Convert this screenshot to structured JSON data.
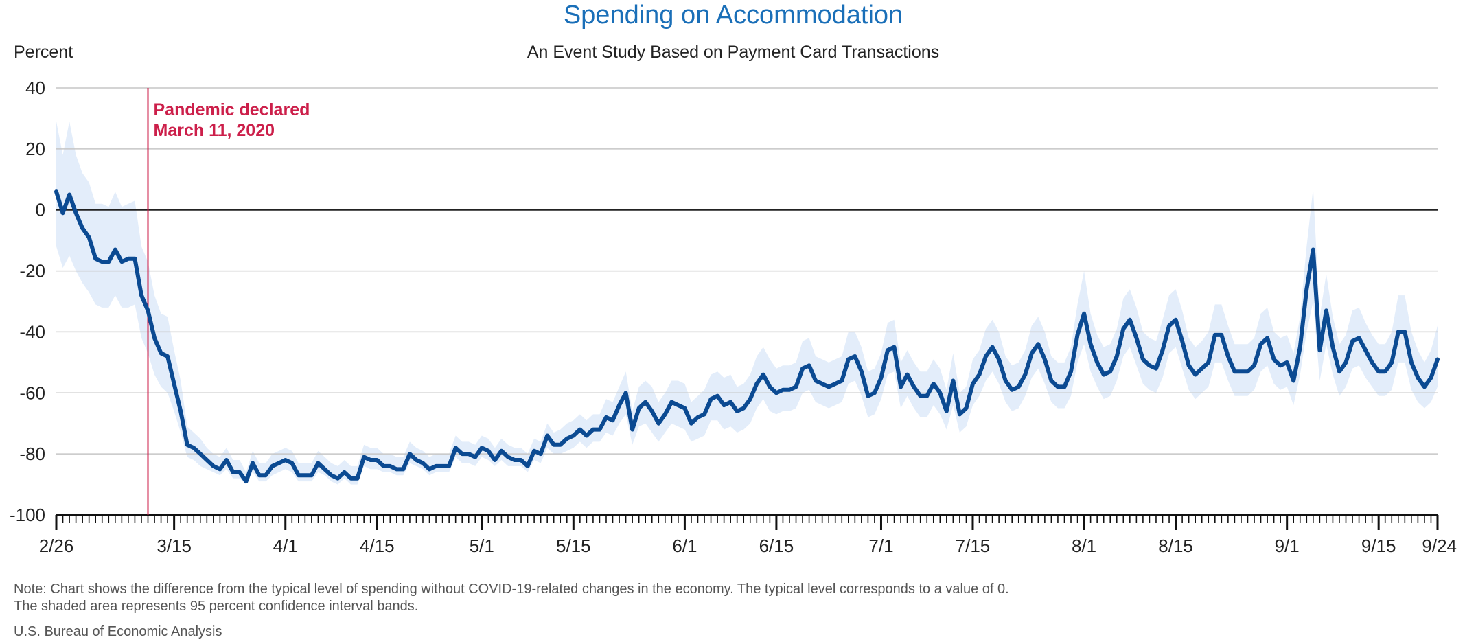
{
  "chart_data": {
    "type": "line",
    "title": "Spending on Accommodation",
    "subtitle": "An Event Study Based on Payment Card Transactions",
    "ylabel": "Percent",
    "xlabel": "",
    "ylim": [
      -100,
      40
    ],
    "yticks": [
      40,
      20,
      0,
      -20,
      -40,
      -60,
      -80,
      -100
    ],
    "x_start": "2/26",
    "x_end": "9/24",
    "xticks": [
      {
        "label": "2/26",
        "day": 0
      },
      {
        "label": "3/15",
        "day": 18
      },
      {
        "label": "4/1",
        "day": 35
      },
      {
        "label": "4/15",
        "day": 49
      },
      {
        "label": "5/1",
        "day": 65
      },
      {
        "label": "5/15",
        "day": 79
      },
      {
        "label": "6/1",
        "day": 96
      },
      {
        "label": "6/15",
        "day": 110
      },
      {
        "label": "7/1",
        "day": 126
      },
      {
        "label": "7/15",
        "day": 140
      },
      {
        "label": "8/1",
        "day": 157
      },
      {
        "label": "8/15",
        "day": 171
      },
      {
        "label": "9/1",
        "day": 188
      },
      {
        "label": "9/15",
        "day": 202
      },
      {
        "label": "9/24",
        "day": 211
      }
    ],
    "grid": true,
    "event": {
      "label_line1": "Pandemic declared",
      "label_line2": "March 11, 2020",
      "day": 14
    },
    "series": [
      {
        "values": [
          6,
          -1,
          5,
          -1,
          -6,
          -9,
          -16,
          -17,
          -17,
          -13,
          -17,
          -16,
          -16,
          -28,
          -33,
          -42,
          -47,
          -48,
          -57,
          -66,
          -77,
          -78,
          -80,
          -82,
          -84,
          -85,
          -82,
          -86,
          -86,
          -89,
          -83,
          -87,
          -87,
          -84,
          -83,
          -82,
          -83,
          -87,
          -87,
          -87,
          -83,
          -85,
          -87,
          -88,
          -86,
          -88,
          -88,
          -81,
          -82,
          -82,
          -84,
          -84,
          -85,
          -85,
          -80,
          -82,
          -83,
          -85,
          -84,
          -84,
          -84,
          -78,
          -80,
          -80,
          -81,
          -78,
          -79,
          -82,
          -79,
          -81,
          -82,
          -82,
          -84,
          -79,
          -80,
          -74,
          -77,
          -77,
          -75,
          -74,
          -72,
          -74,
          -72,
          -72,
          -68,
          -69,
          -64,
          -60,
          -72,
          -65,
          -63,
          -66,
          -70,
          -67,
          -63,
          -64,
          -65,
          -70,
          -68,
          -67,
          -62,
          -61,
          -64,
          -63,
          -66,
          -65,
          -62,
          -57,
          -54,
          -58,
          -60,
          -59,
          -59,
          -58,
          -52,
          -51,
          -56,
          -57,
          -58,
          -57,
          -56,
          -49,
          -48,
          -53,
          -61,
          -60,
          -55,
          -46,
          -45,
          -58,
          -54,
          -58,
          -61,
          -61,
          -57,
          -60,
          -66,
          -56,
          -67,
          -65,
          -57,
          -54,
          -48,
          -45,
          -49,
          -56,
          -59,
          -58,
          -54,
          -47,
          -44,
          -49,
          -56,
          -58,
          -58,
          -53,
          -41,
          -34,
          -44,
          -50,
          -54,
          -53,
          -48,
          -39,
          -36,
          -42,
          -49,
          -51,
          -52,
          -46,
          -38,
          -36,
          -43,
          -51,
          -54,
          -52,
          -50,
          -41,
          -41,
          -48,
          -53,
          -53,
          -53,
          -51,
          -44,
          -42,
          -49,
          -51,
          -50,
          -56,
          -45,
          -26,
          -13,
          -46,
          -33,
          -45,
          -53,
          -50,
          -43,
          -42,
          -46,
          -50,
          -53,
          -53,
          -50,
          -40,
          -40,
          -50,
          -55,
          -58,
          -55,
          -49
        ],
        "lower": [
          -12,
          -19,
          -15,
          -20,
          -24,
          -27,
          -31,
          -32,
          -32,
          -28,
          -32,
          -32,
          -31,
          -42,
          -47,
          -54,
          -58,
          -60,
          -66,
          -73,
          -81,
          -82,
          -84,
          -85,
          -86,
          -87,
          -85,
          -88,
          -88,
          -90,
          -86,
          -89,
          -89,
          -87,
          -86,
          -85,
          -86,
          -89,
          -89,
          -89,
          -86,
          -87,
          -89,
          -90,
          -88,
          -90,
          -90,
          -84,
          -85,
          -85,
          -86,
          -86,
          -87,
          -87,
          -83,
          -84,
          -85,
          -87,
          -86,
          -86,
          -86,
          -81,
          -83,
          -83,
          -84,
          -81,
          -82,
          -84,
          -82,
          -84,
          -84,
          -84,
          -86,
          -82,
          -83,
          -78,
          -80,
          -80,
          -79,
          -78,
          -76,
          -78,
          -76,
          -76,
          -73,
          -74,
          -70,
          -67,
          -77,
          -71,
          -70,
          -73,
          -76,
          -73,
          -70,
          -71,
          -72,
          -76,
          -75,
          -74,
          -69,
          -69,
          -72,
          -71,
          -73,
          -72,
          -70,
          -65,
          -62,
          -66,
          -67,
          -66,
          -66,
          -65,
          -60,
          -59,
          -63,
          -64,
          -65,
          -64,
          -63,
          -57,
          -56,
          -61,
          -68,
          -67,
          -62,
          -54,
          -53,
          -65,
          -61,
          -65,
          -68,
          -68,
          -64,
          -67,
          -72,
          -64,
          -73,
          -71,
          -64,
          -61,
          -56,
          -53,
          -57,
          -63,
          -66,
          -65,
          -61,
          -55,
          -52,
          -57,
          -63,
          -65,
          -65,
          -61,
          -50,
          -44,
          -53,
          -58,
          -62,
          -61,
          -56,
          -48,
          -45,
          -51,
          -57,
          -59,
          -60,
          -55,
          -47,
          -45,
          -52,
          -59,
          -62,
          -60,
          -58,
          -50,
          -50,
          -56,
          -61,
          -61,
          -61,
          -59,
          -53,
          -51,
          -57,
          -59,
          -58,
          -64,
          -54,
          -40,
          -30,
          -56,
          -44,
          -54,
          -61,
          -58,
          -52,
          -51,
          -55,
          -58,
          -61,
          -61,
          -59,
          -50,
          -50,
          -59,
          -63,
          -65,
          -63,
          -58
        ],
        "upper": [
          29,
          18,
          29,
          18,
          12,
          9,
          2,
          2,
          1,
          6,
          1,
          2,
          3,
          -12,
          -17,
          -28,
          -34,
          -35,
          -46,
          -56,
          -71,
          -73,
          -75,
          -78,
          -80,
          -81,
          -78,
          -82,
          -82,
          -86,
          -79,
          -83,
          -83,
          -80,
          -79,
          -78,
          -79,
          -83,
          -83,
          -83,
          -79,
          -81,
          -83,
          -84,
          -82,
          -84,
          -84,
          -77,
          -78,
          -78,
          -80,
          -80,
          -81,
          -81,
          -76,
          -78,
          -79,
          -81,
          -80,
          -80,
          -80,
          -74,
          -76,
          -76,
          -77,
          -74,
          -75,
          -78,
          -75,
          -77,
          -78,
          -78,
          -80,
          -75,
          -76,
          -70,
          -73,
          -72,
          -70,
          -69,
          -67,
          -69,
          -67,
          -67,
          -62,
          -63,
          -58,
          -53,
          -66,
          -58,
          -56,
          -58,
          -63,
          -60,
          -56,
          -56,
          -57,
          -63,
          -61,
          -59,
          -54,
          -53,
          -55,
          -54,
          -58,
          -57,
          -54,
          -48,
          -45,
          -49,
          -52,
          -51,
          -51,
          -50,
          -43,
          -42,
          -48,
          -49,
          -50,
          -49,
          -48,
          -40,
          -40,
          -45,
          -53,
          -52,
          -47,
          -37,
          -36,
          -50,
          -46,
          -50,
          -53,
          -53,
          -49,
          -52,
          -59,
          -47,
          -60,
          -58,
          -49,
          -46,
          -39,
          -36,
          -40,
          -48,
          -51,
          -50,
          -46,
          -38,
          -35,
          -40,
          -48,
          -50,
          -50,
          -45,
          -31,
          -20,
          -34,
          -41,
          -45,
          -44,
          -39,
          -29,
          -26,
          -32,
          -40,
          -42,
          -43,
          -36,
          -28,
          -26,
          -33,
          -42,
          -45,
          -43,
          -40,
          -31,
          -31,
          -38,
          -44,
          -44,
          -44,
          -42,
          -34,
          -32,
          -40,
          -42,
          -41,
          -47,
          -35,
          -12,
          7,
          -35,
          -21,
          -35,
          -44,
          -41,
          -33,
          -32,
          -37,
          -41,
          -44,
          -44,
          -40,
          -28,
          -28,
          -40,
          -46,
          -50,
          -46,
          -38
        ]
      }
    ],
    "colors": {
      "line": "#0b4a92",
      "band": "#e3edfa",
      "event": "#cc1f4a",
      "title": "#1a6fb8",
      "grid": "#c6c6c6",
      "zero": "#222222"
    }
  },
  "footer": {
    "note_line1": "Note: Chart shows the difference from the typical level of spending without COVID-19-related changes in the economy. The typical level corresponds to a value of 0.",
    "note_line2": "The shaded area represents 95 percent confidence interval bands.",
    "source": "U.S. Bureau of Economic Analysis"
  }
}
